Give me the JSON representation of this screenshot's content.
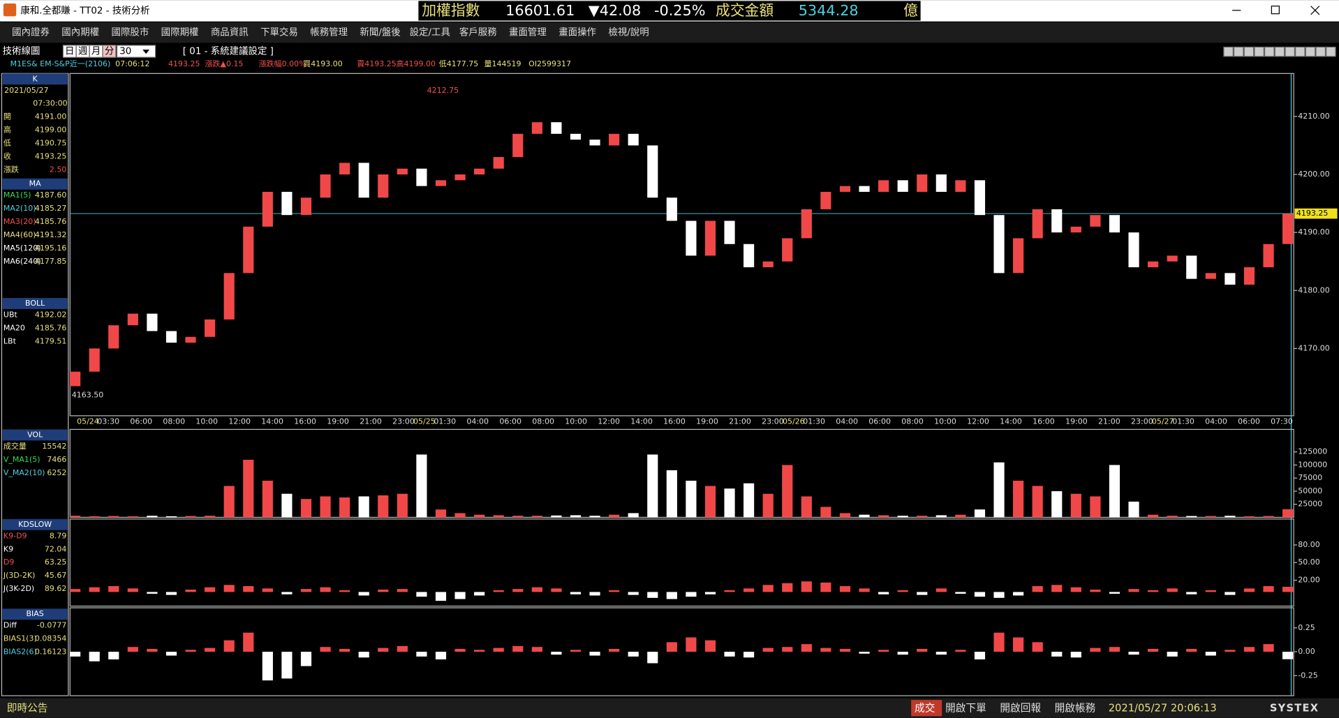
{
  "window": {
    "title": "康和.全都賺 - TT02 - 技術分析"
  },
  "ticker": {
    "name": "加權指數",
    "index": "16601.61",
    "change": "▼42.08",
    "pct": "-0.25%",
    "turnover_label": "成交金額",
    "turnover": "5344.28",
    "unit": "億"
  },
  "menu": [
    "國內證券",
    "國內期權",
    "國際股市",
    "國際期權",
    "商品資訊",
    "下單交易",
    "帳務管理",
    "新聞/盤後",
    "設定/工具",
    "客戶服務",
    "畫面管理",
    "畫面操作",
    "檢視/說明"
  ],
  "toolbar": {
    "title": "技術線圖",
    "periods": [
      "日",
      "週",
      "月",
      "分"
    ],
    "interval": "30",
    "setting": "[ 01 - 系統建議設定 ]"
  },
  "quote": [
    "M1ES&  EM-S&P近一(2106)",
    "07:06:12",
    "4193.25",
    "漲跌▲0.15",
    "漲跌幅0.00%",
    "買4193.00",
    "賣4193.25",
    "高4199.00",
    "低4177.75",
    "量144519",
    "OI2599317"
  ],
  "left_panel": [
    {
      "title": "K",
      "lines": [
        "2021/05/27",
        "07:30:00"
      ],
      "rows": [
        [
          "開",
          "4191.00"
        ],
        [
          "高",
          "4199.00"
        ],
        [
          "低",
          "4190.75"
        ],
        [
          "收",
          "4193.25"
        ],
        [
          "漲跌",
          "2.50"
        ]
      ]
    },
    {
      "title": "MA",
      "rows": [
        [
          "MA1(5)",
          "4187.60"
        ],
        [
          "MA2(10)",
          "4185.27"
        ],
        [
          "MA3(20)",
          "4185.76"
        ],
        [
          "MA4(60)",
          "4191.32"
        ],
        [
          "MA5(120)",
          "4195.16"
        ],
        [
          "MA6(240)",
          "4177.85"
        ]
      ]
    },
    {
      "title": "BOLL",
      "rows": [
        [
          "UBt",
          "4192.02"
        ],
        [
          "MA20",
          "4185.76"
        ],
        [
          "LBt",
          "4179.51"
        ]
      ]
    },
    {
      "title": "VOL",
      "rows": [
        [
          "成交量",
          "15542"
        ],
        [
          "V_MA1(5)",
          "7466"
        ],
        [
          "V_MA2(10)",
          "6252"
        ]
      ]
    },
    {
      "title": "KDSLOW",
      "rows": [
        [
          "K9-D9",
          "8.79"
        ],
        [
          "K9",
          "72.04"
        ],
        [
          "D9",
          "63.25"
        ],
        [
          "J(3D-2K)",
          "45.67"
        ],
        [
          "J(3K-2D)",
          "89.62"
        ]
      ]
    },
    {
      "title": "BIAS",
      "rows": [
        [
          "Diff",
          "-0.0777"
        ],
        [
          "BIAS1(3)",
          "0.08354"
        ],
        [
          "BIAS2(6)",
          "0.16123"
        ]
      ]
    }
  ],
  "chart_data": {
    "type": "candlestick",
    "ylim": [
      4158.4,
      4217.4
    ],
    "yticks": [
      {
        "value": 4170,
        "label": "4170.00"
      },
      {
        "value": 4180,
        "label": "4180.00"
      },
      {
        "value": 4190,
        "label": "4190.00"
      },
      {
        "value": 4200,
        "label": "4200.00"
      },
      {
        "value": 4210,
        "label": "4210.00"
      }
    ],
    "last": 4193.25,
    "high_label": "4212.75",
    "low_label": "4163.50",
    "open": 4163.5,
    "closes": [
      4166,
      4170,
      4174,
      4176,
      4173,
      4171,
      4172,
      4175,
      4183,
      4191,
      4197,
      4193,
      4196,
      4200,
      4202,
      4196,
      4200,
      4201,
      4198,
      4199,
      4200,
      4201,
      4203,
      4207,
      4209,
      4207,
      4206,
      4205,
      4207,
      4205,
      4196,
      4192,
      4186,
      4192,
      4188,
      4184,
      4185,
      4189,
      4194,
      4197,
      4198,
      4197,
      4199,
      4197,
      4200,
      4197,
      4199,
      4193,
      4183,
      4189,
      4194,
      4190,
      4191,
      4193,
      4190,
      4184,
      4185,
      4186,
      4182,
      4183,
      4181,
      4184,
      4188,
      4193.25
    ],
    "time_axis": [
      {
        "date": "05/24",
        "times": [
          "03:30",
          "06:00",
          "08:00",
          "10:00",
          "12:00",
          "14:00",
          "16:00",
          "19:00",
          "21:00",
          "23:00"
        ]
      },
      {
        "date": "05/25",
        "times": [
          "01:30",
          "04:00",
          "06:00",
          "08:00",
          "10:00",
          "12:00",
          "14:00",
          "16:00",
          "19:00",
          "21:00",
          "23:00"
        ]
      },
      {
        "date": "05/26",
        "times": [
          "01:30",
          "04:00",
          "06:00",
          "08:00",
          "10:00",
          "12:00",
          "14:00",
          "16:00",
          "19:00",
          "21:00",
          "23:00"
        ]
      },
      {
        "date": "05/27",
        "times": [
          "01:30",
          "04:00",
          "06:00",
          "07:30"
        ]
      }
    ]
  },
  "volume": {
    "ylim": [
      0,
      168000
    ],
    "yticks": [
      25000,
      50000,
      75000,
      100000,
      125000
    ],
    "values": [
      3000,
      2000,
      2500,
      2000,
      3000,
      2000,
      2500,
      3000,
      60000,
      110000,
      70000,
      45000,
      35000,
      40000,
      38000,
      40000,
      42000,
      45000,
      120000,
      15000,
      8000,
      5000,
      4000,
      3000,
      3000,
      3500,
      4000,
      3000,
      5000,
      8000,
      120000,
      90000,
      70000,
      60000,
      55000,
      65000,
      45000,
      100000,
      40000,
      20000,
      8000,
      5000,
      4000,
      3000,
      3000,
      4000,
      5000,
      15000,
      105000,
      70000,
      60000,
      50000,
      45000,
      40000,
      100000,
      30000,
      5000,
      3000,
      2500,
      2500,
      3000,
      2000,
      2500,
      15542
    ]
  },
  "kd": {
    "ylim": [
      -24,
      124
    ],
    "yticks": [
      {
        "value": 20,
        "label": "20.00"
      },
      {
        "value": 50,
        "label": "50.00"
      },
      {
        "value": 80,
        "label": "80.00"
      }
    ],
    "values": [
      5,
      8,
      10,
      6,
      -3,
      -5,
      4,
      8,
      12,
      10,
      6,
      -4,
      5,
      8,
      3,
      -6,
      4,
      5,
      -8,
      -15,
      -12,
      -6,
      3,
      5,
      8,
      6,
      -4,
      -6,
      3,
      -5,
      -10,
      -12,
      -8,
      -4,
      3,
      6,
      12,
      15,
      18,
      16,
      10,
      6,
      -4,
      3,
      -5,
      6,
      -3,
      -8,
      -10,
      -6,
      10,
      12,
      8,
      4,
      -3,
      5,
      3,
      6,
      -4,
      3,
      -5,
      6,
      10,
      8.79
    ]
  },
  "bias": {
    "ylim": [
      -0.46,
      0.46
    ],
    "yticks": [
      -0.25,
      {
        "value": 0,
        "label": "0.00"
      },
      0.25
    ],
    "values": [
      -0.05,
      -0.1,
      -0.08,
      0.05,
      0.03,
      -0.04,
      0.02,
      0.04,
      0.12,
      0.2,
      -0.3,
      -0.28,
      -0.15,
      0.05,
      0.03,
      -0.06,
      0.04,
      0.06,
      -0.05,
      -0.08,
      0.03,
      0.02,
      0.04,
      0.06,
      0.05,
      -0.03,
      0.02,
      -0.04,
      0.03,
      -0.05,
      -0.12,
      0.1,
      0.15,
      0.12,
      -0.05,
      -0.06,
      0.04,
      0.05,
      0.08,
      0.04,
      0.03,
      -0.02,
      0.02,
      -0.03,
      0.03,
      -0.03,
      0.02,
      -0.08,
      0.2,
      0.15,
      0.1,
      -0.05,
      -0.06,
      0.04,
      0.05,
      -0.03,
      0.03,
      -0.05,
      0.03,
      -0.04,
      0.02,
      0.05,
      0.08,
      -0.0777
    ]
  },
  "status": {
    "notice": "即時公告",
    "trade": "成交",
    "buttons": [
      "開啟下單",
      "開啟回報",
      "開啟帳務"
    ],
    "datetime": "2021/05/27 20:06:13",
    "brand": "SYSTEX"
  }
}
